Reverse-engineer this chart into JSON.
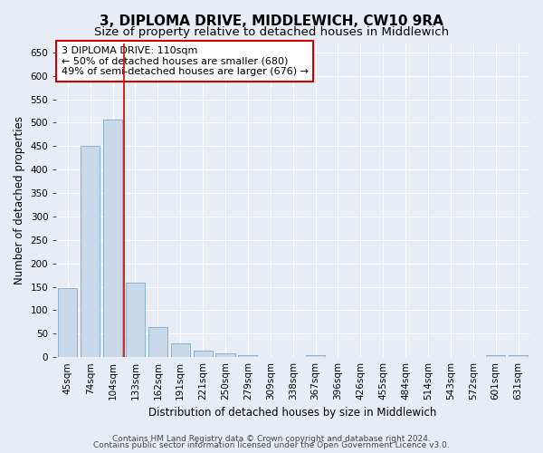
{
  "title": "3, DIPLOMA DRIVE, MIDDLEWICH, CW10 9RA",
  "subtitle": "Size of property relative to detached houses in Middlewich",
  "xlabel": "Distribution of detached houses by size in Middlewich",
  "ylabel": "Number of detached properties",
  "footer_line1": "Contains HM Land Registry data © Crown copyright and database right 2024.",
  "footer_line2": "Contains public sector information licensed under the Open Government Licence v3.0.",
  "annotation_line1": "3 DIPLOMA DRIVE: 110sqm",
  "annotation_line2": "← 50% of detached houses are smaller (680)",
  "annotation_line3": "49% of semi-detached houses are larger (676) →",
  "bar_labels": [
    "45sqm",
    "74sqm",
    "104sqm",
    "133sqm",
    "162sqm",
    "191sqm",
    "221sqm",
    "250sqm",
    "279sqm",
    "309sqm",
    "338sqm",
    "367sqm",
    "396sqm",
    "426sqm",
    "455sqm",
    "484sqm",
    "514sqm",
    "543sqm",
    "572sqm",
    "601sqm",
    "631sqm"
  ],
  "bar_values": [
    148,
    450,
    507,
    158,
    65,
    30,
    13,
    8,
    5,
    0,
    0,
    5,
    0,
    0,
    0,
    0,
    0,
    0,
    0,
    5,
    5
  ],
  "bar_color": "#c9d9ea",
  "bar_edge_color": "#7aaac8",
  "redline_x": 2.5,
  "ylim": [
    0,
    670
  ],
  "yticks": [
    0,
    50,
    100,
    150,
    200,
    250,
    300,
    350,
    400,
    450,
    500,
    550,
    600,
    650
  ],
  "bg_color": "#e8edf5",
  "plot_bg_color": "#e8edf5",
  "grid_color": "#ffffff",
  "annotation_box_facecolor": "#ffffff",
  "annotation_box_edge": "#cc0000",
  "title_fontsize": 11,
  "subtitle_fontsize": 9.5,
  "axis_label_fontsize": 8.5,
  "tick_fontsize": 7.5,
  "annotation_fontsize": 8,
  "footer_fontsize": 6.5
}
